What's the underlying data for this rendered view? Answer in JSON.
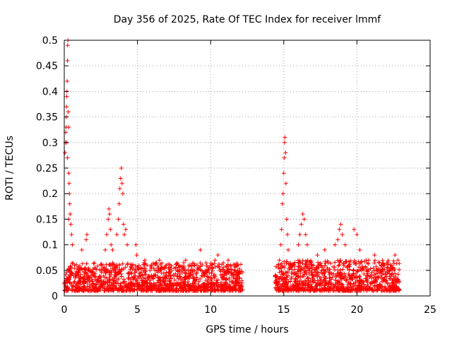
{
  "chart_data": {
    "type": "scatter",
    "title": "Day 356 of 2025, Rate Of TEC Index for receiver lmmf",
    "xlabel": "GPS time / hours",
    "ylabel": "ROTI / TECUs",
    "xlim": [
      0,
      25
    ],
    "ylim": [
      0,
      0.5
    ],
    "xticks": [
      0,
      5,
      10,
      15,
      20,
      25
    ],
    "yticks": [
      0,
      0.05,
      0.1,
      0.15,
      0.2,
      0.25,
      0.3,
      0.35,
      0.4,
      0.45,
      0.5
    ],
    "grid": true,
    "marker": "+",
    "colors": {
      "marker": "#ff0000",
      "grid": "#a0a0a0",
      "axis": "#000000"
    },
    "series": [
      {
        "name": "ROTI",
        "points": [
          [
            0.05,
            0.28
          ],
          [
            0.08,
            0.3
          ],
          [
            0.1,
            0.32
          ],
          [
            0.12,
            0.33
          ],
          [
            0.14,
            0.35
          ],
          [
            0.15,
            0.37
          ],
          [
            0.17,
            0.39
          ],
          [
            0.18,
            0.4
          ],
          [
            0.2,
            0.42
          ],
          [
            0.22,
            0.46
          ],
          [
            0.23,
            0.49
          ],
          [
            0.25,
            0.5
          ],
          [
            0.27,
            0.36
          ],
          [
            0.29,
            0.33
          ],
          [
            0.31,
            0.24
          ],
          [
            0.33,
            0.22
          ],
          [
            0.35,
            0.2
          ],
          [
            0.37,
            0.18
          ],
          [
            0.4,
            0.16
          ],
          [
            0.45,
            0.14
          ],
          [
            0.5,
            0.12
          ],
          [
            0.55,
            0.1
          ],
          [
            0.3,
            0.15
          ],
          [
            0.22,
            0.27
          ],
          [
            0.18,
            0.3
          ],
          [
            1.2,
            0.09
          ],
          [
            1.5,
            0.11
          ],
          [
            1.55,
            0.12
          ],
          [
            2.8,
            0.09
          ],
          [
            2.9,
            0.12
          ],
          [
            3.0,
            0.15
          ],
          [
            3.05,
            0.17
          ],
          [
            3.1,
            0.16
          ],
          [
            3.15,
            0.13
          ],
          [
            3.2,
            0.1
          ],
          [
            3.3,
            0.09
          ],
          [
            3.6,
            0.12
          ],
          [
            3.7,
            0.15
          ],
          [
            3.75,
            0.18
          ],
          [
            3.8,
            0.21
          ],
          [
            3.85,
            0.23
          ],
          [
            3.9,
            0.25
          ],
          [
            3.95,
            0.22
          ],
          [
            4.0,
            0.2
          ],
          [
            4.05,
            0.14
          ],
          [
            4.1,
            0.12
          ],
          [
            4.2,
            0.13
          ],
          [
            4.3,
            0.1
          ],
          [
            4.9,
            0.1
          ],
          [
            4.95,
            0.08
          ],
          [
            5.5,
            0.07
          ],
          [
            6.5,
            0.07
          ],
          [
            7.8,
            0.06
          ],
          [
            8.3,
            0.07
          ],
          [
            9.3,
            0.09
          ],
          [
            10.3,
            0.07
          ],
          [
            10.5,
            0.08
          ],
          [
            11.2,
            0.07
          ],
          [
            11.8,
            0.06
          ],
          [
            14.7,
            0.07
          ],
          [
            14.8,
            0.1
          ],
          [
            14.85,
            0.13
          ],
          [
            14.9,
            0.18
          ],
          [
            14.95,
            0.2
          ],
          [
            15.0,
            0.24
          ],
          [
            15.03,
            0.27
          ],
          [
            15.05,
            0.3
          ],
          [
            15.08,
            0.31
          ],
          [
            15.12,
            0.28
          ],
          [
            15.15,
            0.22
          ],
          [
            15.2,
            0.15
          ],
          [
            15.25,
            0.12
          ],
          [
            15.3,
            0.09
          ],
          [
            16.0,
            0.1
          ],
          [
            16.1,
            0.12
          ],
          [
            16.2,
            0.14
          ],
          [
            16.3,
            0.16
          ],
          [
            16.4,
            0.15
          ],
          [
            16.5,
            0.12
          ],
          [
            16.6,
            0.1
          ],
          [
            17.3,
            0.08
          ],
          [
            17.8,
            0.09
          ],
          [
            18.5,
            0.1
          ],
          [
            18.7,
            0.11
          ],
          [
            18.8,
            0.13
          ],
          [
            18.9,
            0.14
          ],
          [
            19.0,
            0.12
          ],
          [
            19.2,
            0.1
          ],
          [
            19.8,
            0.13
          ],
          [
            20.0,
            0.12
          ],
          [
            20.2,
            0.09
          ],
          [
            20.8,
            0.07
          ],
          [
            21.2,
            0.08
          ],
          [
            21.8,
            0.06
          ],
          [
            22.4,
            0.05
          ],
          [
            22.6,
            0.08
          ],
          [
            22.8,
            0.07
          ]
        ]
      }
    ],
    "density_bands": [
      {
        "x_start": 0.0,
        "x_end": 12.2,
        "y_low": 0.01,
        "y_high": 0.065
      },
      {
        "x_start": 14.4,
        "x_end": 22.9,
        "y_low": 0.01,
        "y_high": 0.07
      }
    ]
  }
}
